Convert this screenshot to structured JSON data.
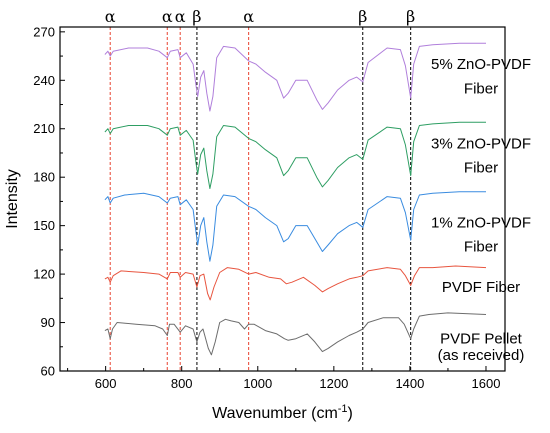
{
  "chart_data": {
    "type": "line",
    "title": "",
    "xlabel": "Wavenumber (cm",
    "xlabel_superscript": "-1",
    "xlabel_suffix": ")",
    "ylabel": "Intensity",
    "xlim": [
      480,
      1650
    ],
    "ylim": [
      60,
      273
    ],
    "x_ticks": [
      600,
      800,
      1000,
      1200,
      1400,
      1600
    ],
    "y_ticks": [
      60,
      90,
      120,
      150,
      180,
      210,
      240,
      270
    ],
    "grid": false,
    "reference_lines": [
      {
        "x": 612,
        "label": "α",
        "color": "#e8432f"
      },
      {
        "x": 762,
        "label": "α",
        "color": "#e8432f"
      },
      {
        "x": 796,
        "label": "α",
        "color": "#e8432f"
      },
      {
        "x": 840,
        "label": "β",
        "color": "#000000"
      },
      {
        "x": 976,
        "label": "α",
        "color": "#e8432f"
      },
      {
        "x": 1276,
        "label": "β",
        "color": "#000000"
      },
      {
        "x": 1402,
        "label": "β",
        "color": "#000000"
      }
    ],
    "series": [
      {
        "name_lines": [
          "PVDF Pellet",
          "(as received)"
        ],
        "label_y": [
          80,
          70
        ],
        "color": "#6d6d6d",
        "points": [
          [
            598,
            85
          ],
          [
            606,
            86
          ],
          [
            612,
            80
          ],
          [
            618,
            86
          ],
          [
            630,
            90
          ],
          [
            680,
            89
          ],
          [
            730,
            88
          ],
          [
            750,
            86
          ],
          [
            762,
            82
          ],
          [
            768,
            89
          ],
          [
            780,
            89
          ],
          [
            796,
            84
          ],
          [
            810,
            88
          ],
          [
            830,
            86
          ],
          [
            840,
            78
          ],
          [
            848,
            84
          ],
          [
            856,
            86
          ],
          [
            870,
            74
          ],
          [
            878,
            70
          ],
          [
            888,
            78
          ],
          [
            900,
            90
          ],
          [
            915,
            92
          ],
          [
            930,
            91
          ],
          [
            950,
            90
          ],
          [
            965,
            86
          ],
          [
            976,
            89
          ],
          [
            990,
            89
          ],
          [
            1020,
            85
          ],
          [
            1050,
            83
          ],
          [
            1070,
            80
          ],
          [
            1080,
            79
          ],
          [
            1100,
            80
          ],
          [
            1130,
            83
          ],
          [
            1150,
            78
          ],
          [
            1170,
            72
          ],
          [
            1185,
            74
          ],
          [
            1210,
            78
          ],
          [
            1240,
            82
          ],
          [
            1260,
            84
          ],
          [
            1276,
            86
          ],
          [
            1290,
            90
          ],
          [
            1330,
            93
          ],
          [
            1370,
            93
          ],
          [
            1385,
            89
          ],
          [
            1402,
            80
          ],
          [
            1410,
            86
          ],
          [
            1425,
            94
          ],
          [
            1450,
            95
          ],
          [
            1500,
            96
          ],
          [
            1600,
            95
          ]
        ]
      },
      {
        "name_lines": [
          "PVDF Fiber"
        ],
        "label_y": [
          112
        ],
        "color": "#e8553f",
        "points": [
          [
            598,
            117
          ],
          [
            606,
            118
          ],
          [
            612,
            115
          ],
          [
            620,
            119
          ],
          [
            640,
            122
          ],
          [
            700,
            121
          ],
          [
            740,
            120
          ],
          [
            762,
            117
          ],
          [
            770,
            121
          ],
          [
            790,
            121
          ],
          [
            796,
            118
          ],
          [
            810,
            121
          ],
          [
            830,
            120
          ],
          [
            840,
            112
          ],
          [
            848,
            119
          ],
          [
            858,
            120
          ],
          [
            868,
            108
          ],
          [
            875,
            104
          ],
          [
            885,
            112
          ],
          [
            900,
            121
          ],
          [
            920,
            124
          ],
          [
            950,
            123
          ],
          [
            976,
            120
          ],
          [
            995,
            121
          ],
          [
            1030,
            118
          ],
          [
            1060,
            117
          ],
          [
            1075,
            114
          ],
          [
            1090,
            115
          ],
          [
            1120,
            118
          ],
          [
            1150,
            113
          ],
          [
            1170,
            109
          ],
          [
            1185,
            111
          ],
          [
            1210,
            114
          ],
          [
            1240,
            117
          ],
          [
            1260,
            118
          ],
          [
            1276,
            119
          ],
          [
            1290,
            122
          ],
          [
            1340,
            124
          ],
          [
            1375,
            123
          ],
          [
            1388,
            119
          ],
          [
            1402,
            113
          ],
          [
            1412,
            119
          ],
          [
            1425,
            124
          ],
          [
            1460,
            124
          ],
          [
            1520,
            125
          ],
          [
            1600,
            124
          ]
        ]
      },
      {
        "name_lines": [
          "1% ZnO-PVDF",
          "Fiber"
        ],
        "label_y": [
          152,
          137
        ],
        "color": "#3a8ce0",
        "points": [
          [
            598,
            166
          ],
          [
            606,
            168
          ],
          [
            612,
            164
          ],
          [
            620,
            167
          ],
          [
            650,
            169
          ],
          [
            700,
            170
          ],
          [
            740,
            168
          ],
          [
            762,
            164
          ],
          [
            770,
            167
          ],
          [
            790,
            168
          ],
          [
            796,
            163
          ],
          [
            812,
            166
          ],
          [
            830,
            160
          ],
          [
            838,
            145
          ],
          [
            842,
            138
          ],
          [
            850,
            150
          ],
          [
            858,
            155
          ],
          [
            866,
            140
          ],
          [
            874,
            128
          ],
          [
            882,
            138
          ],
          [
            892,
            162
          ],
          [
            910,
            169
          ],
          [
            940,
            168
          ],
          [
            976,
            162
          ],
          [
            995,
            160
          ],
          [
            1020,
            155
          ],
          [
            1050,
            150
          ],
          [
            1068,
            140
          ],
          [
            1080,
            142
          ],
          [
            1100,
            150
          ],
          [
            1130,
            150
          ],
          [
            1155,
            140
          ],
          [
            1170,
            134
          ],
          [
            1185,
            138
          ],
          [
            1210,
            145
          ],
          [
            1240,
            150
          ],
          [
            1260,
            152
          ],
          [
            1276,
            149
          ],
          [
            1290,
            160
          ],
          [
            1340,
            168
          ],
          [
            1375,
            167
          ],
          [
            1388,
            158
          ],
          [
            1402,
            141
          ],
          [
            1410,
            160
          ],
          [
            1425,
            169
          ],
          [
            1460,
            170
          ],
          [
            1530,
            171
          ],
          [
            1600,
            171
          ]
        ]
      },
      {
        "name_lines": [
          "3% ZnO-PVDF",
          "Fiber"
        ],
        "label_y": [
          201,
          186
        ],
        "color": "#2e9e63",
        "points": [
          [
            598,
            208
          ],
          [
            606,
            210
          ],
          [
            612,
            207
          ],
          [
            620,
            210
          ],
          [
            660,
            212
          ],
          [
            710,
            212
          ],
          [
            740,
            210
          ],
          [
            762,
            206
          ],
          [
            770,
            210
          ],
          [
            790,
            211
          ],
          [
            796,
            206
          ],
          [
            812,
            209
          ],
          [
            830,
            203
          ],
          [
            838,
            188
          ],
          [
            842,
            182
          ],
          [
            850,
            194
          ],
          [
            858,
            198
          ],
          [
            866,
            184
          ],
          [
            874,
            173
          ],
          [
            882,
            182
          ],
          [
            892,
            205
          ],
          [
            910,
            212
          ],
          [
            940,
            211
          ],
          [
            976,
            204
          ],
          [
            995,
            202
          ],
          [
            1020,
            197
          ],
          [
            1050,
            192
          ],
          [
            1068,
            181
          ],
          [
            1080,
            184
          ],
          [
            1100,
            192
          ],
          [
            1130,
            192
          ],
          [
            1155,
            180
          ],
          [
            1170,
            174
          ],
          [
            1185,
            178
          ],
          [
            1210,
            186
          ],
          [
            1240,
            192
          ],
          [
            1260,
            194
          ],
          [
            1276,
            191
          ],
          [
            1290,
            203
          ],
          [
            1340,
            211
          ],
          [
            1375,
            210
          ],
          [
            1388,
            200
          ],
          [
            1402,
            181
          ],
          [
            1410,
            202
          ],
          [
            1425,
            212
          ],
          [
            1460,
            213
          ],
          [
            1530,
            214
          ],
          [
            1600,
            214
          ]
        ]
      },
      {
        "name_lines": [
          "5% ZnO-PVDF",
          "Fiber"
        ],
        "label_y": [
          250,
          235
        ],
        "color": "#b07fdb",
        "points": [
          [
            598,
            256
          ],
          [
            606,
            258
          ],
          [
            612,
            255
          ],
          [
            620,
            258
          ],
          [
            660,
            260
          ],
          [
            710,
            260
          ],
          [
            740,
            258
          ],
          [
            762,
            254
          ],
          [
            770,
            258
          ],
          [
            790,
            259
          ],
          [
            796,
            254
          ],
          [
            812,
            257
          ],
          [
            830,
            250
          ],
          [
            838,
            236
          ],
          [
            842,
            230
          ],
          [
            850,
            242
          ],
          [
            858,
            246
          ],
          [
            866,
            232
          ],
          [
            874,
            221
          ],
          [
            882,
            230
          ],
          [
            892,
            254
          ],
          [
            910,
            261
          ],
          [
            940,
            260
          ],
          [
            976,
            252
          ],
          [
            995,
            250
          ],
          [
            1020,
            245
          ],
          [
            1050,
            240
          ],
          [
            1068,
            229
          ],
          [
            1080,
            232
          ],
          [
            1100,
            240
          ],
          [
            1130,
            240
          ],
          [
            1155,
            228
          ],
          [
            1170,
            222
          ],
          [
            1185,
            226
          ],
          [
            1210,
            234
          ],
          [
            1240,
            240
          ],
          [
            1260,
            242
          ],
          [
            1276,
            239
          ],
          [
            1290,
            251
          ],
          [
            1340,
            260
          ],
          [
            1375,
            259
          ],
          [
            1388,
            249
          ],
          [
            1402,
            229
          ],
          [
            1410,
            250
          ],
          [
            1425,
            261
          ],
          [
            1460,
            262
          ],
          [
            1530,
            263
          ],
          [
            1600,
            263
          ]
        ]
      }
    ]
  }
}
